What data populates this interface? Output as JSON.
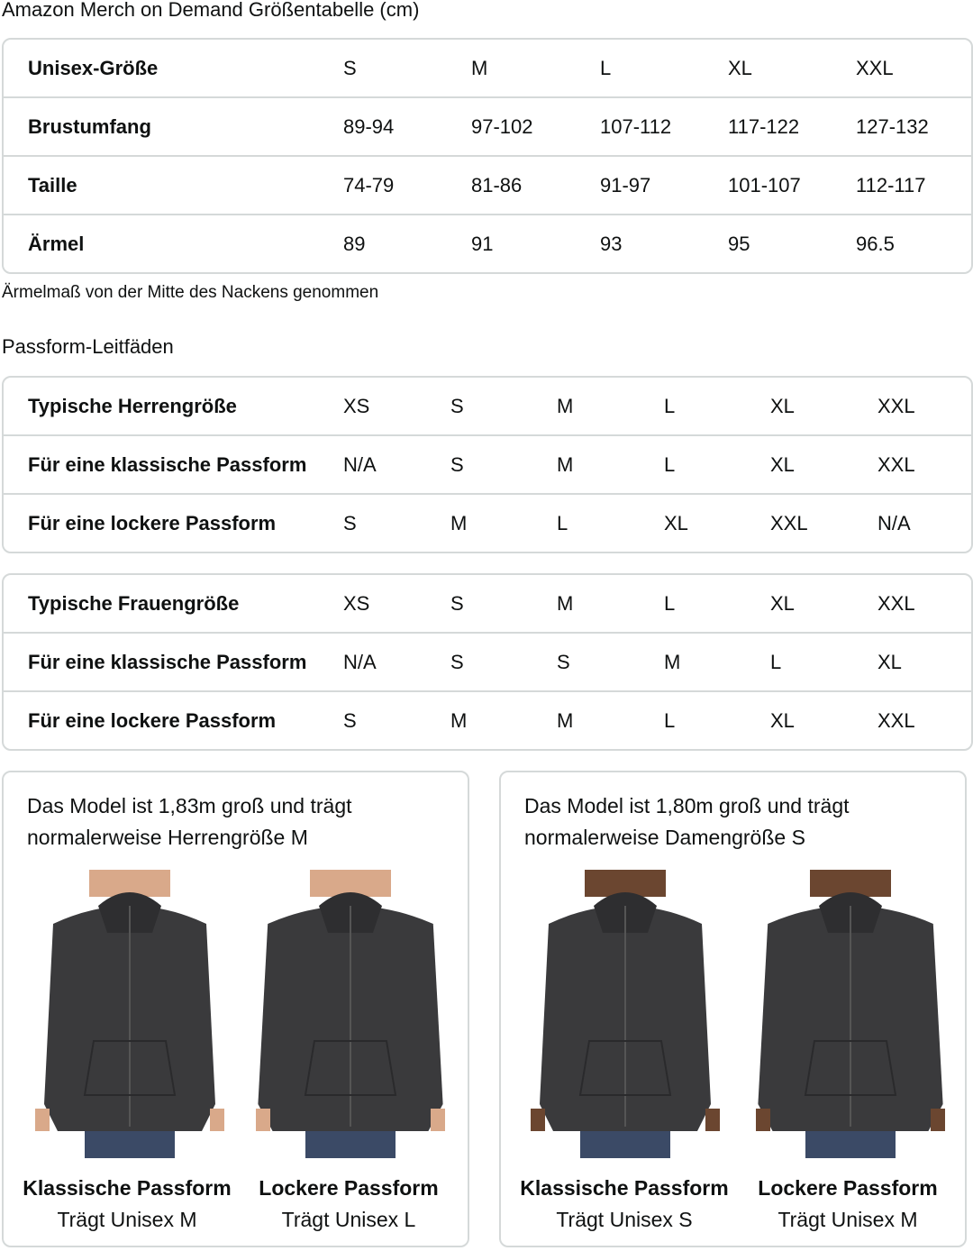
{
  "title": "Amazon Merch on Demand Größentabelle (cm)",
  "size_table": {
    "rows": [
      [
        "Unisex-Größe",
        "S",
        "M",
        "L",
        "XL",
        "XXL"
      ],
      [
        "Brustumfang",
        "89-94",
        "97-102",
        "107-112",
        "117-122",
        "127-132"
      ],
      [
        "Taille",
        "74-79",
        "81-86",
        "91-97",
        "101-107",
        "112-117"
      ],
      [
        "Ärmel",
        "89",
        "91",
        "93",
        "95",
        "96.5"
      ]
    ]
  },
  "note": "Ärmelmaß von der Mitte des Nackens genommen",
  "fit_title": "Passform-Leitfäden",
  "men_table": {
    "rows": [
      [
        "Typische Herrengröße",
        "XS",
        "S",
        "M",
        "L",
        "XL",
        "XXL"
      ],
      [
        "Für eine klassische Passform",
        "N/A",
        "S",
        "M",
        "L",
        "XL",
        "XXL"
      ],
      [
        "Für eine lockere Passform",
        "S",
        "M",
        "L",
        "XL",
        "XXL",
        "N/A"
      ]
    ]
  },
  "women_table": {
    "rows": [
      [
        "Typische Frauengröße",
        "XS",
        "S",
        "M",
        "L",
        "XL",
        "XXL"
      ],
      [
        "Für eine klassische Passform",
        "N/A",
        "S",
        "S",
        "M",
        "L",
        "XL"
      ],
      [
        "Für eine lockere Passform",
        "S",
        "M",
        "M",
        "L",
        "XL",
        "XXL"
      ]
    ]
  },
  "cards": [
    {
      "caption": "Das Model ist 1,83m groß und trägt normalerweise Herrengröße M",
      "photos": [
        {
          "fit": "Klassische Passform",
          "wears": "Trägt Unisex M"
        },
        {
          "fit": "Lockere Passform",
          "wears": "Trägt Unisex L"
        }
      ]
    },
    {
      "caption": "Das Model ist 1,80m groß und trägt normalerweise Damengröße S",
      "photos": [
        {
          "fit": "Klassische Passform",
          "wears": "Trägt Unisex S"
        },
        {
          "fit": "Lockere Passform",
          "wears": "Trägt Unisex M"
        }
      ]
    }
  ],
  "colors": {
    "border": "#d5d9d9",
    "hoodie": "#3a3a3c",
    "jeans": "#3b4a66",
    "skin_men": "#d9a98a",
    "skin_women": "#6b4630"
  }
}
